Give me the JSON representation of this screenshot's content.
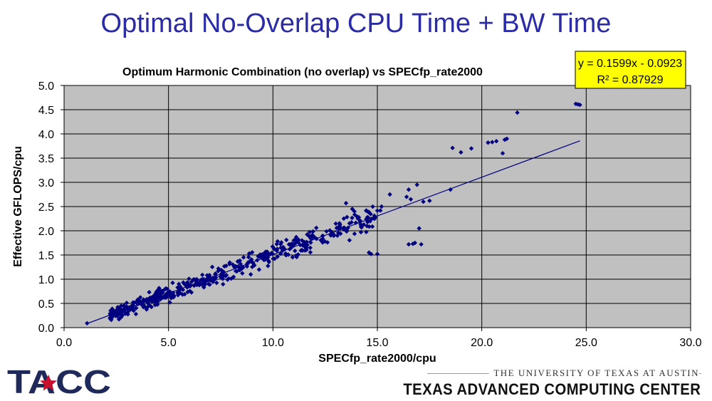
{
  "slide": {
    "title": "Optimal No-Overlap CPU Time + BW Time",
    "footer_university": "THE UNIVERSITY OF TEXAS AT AUSTIN",
    "footer_center": "TEXAS ADVANCED COMPUTING CENTER",
    "logo_text": "TACC"
  },
  "colors": {
    "title": "#2b2ba6",
    "plot_bg": "#c0c0c0",
    "points": "#000080",
    "trend": "#000080",
    "equation_bg": "#ffff00",
    "logo_red": "#c8102e",
    "logo_navy": "#1f2a5a"
  },
  "chart_data": {
    "type": "scatter",
    "title": "Optimum Harmonic Combination (no overlap) vs SPECfp_rate2000",
    "xlabel": "SPECfp_rate2000/cpu",
    "ylabel": "Effective GFLOPS/cpu",
    "xlim": [
      0,
      30
    ],
    "ylim": [
      0,
      5
    ],
    "xticks": [
      "0.0",
      "5.0",
      "10.0",
      "15.0",
      "20.0",
      "25.0",
      "30.0"
    ],
    "yticks": [
      "0.0",
      "0.5",
      "1.0",
      "1.5",
      "2.0",
      "2.5",
      "3.0",
      "3.5",
      "4.0",
      "4.5",
      "5.0"
    ],
    "grid": true,
    "legend": "none",
    "trendline": {
      "slope": 0.1599,
      "intercept": -0.0923,
      "x_range": [
        1.1,
        24.7
      ],
      "equation": "y = 0.1599x - 0.0923",
      "r_squared": "R² = 0.87929"
    },
    "highlight_points": [
      [
        24.5,
        4.62
      ],
      [
        24.7,
        4.6
      ],
      [
        24.6,
        4.61
      ],
      [
        21.7,
        4.44
      ],
      [
        21.1,
        3.88
      ],
      [
        21.2,
        3.9
      ],
      [
        20.5,
        3.83
      ],
      [
        20.7,
        3.85
      ],
      [
        20.3,
        3.82
      ],
      [
        21.0,
        3.6
      ],
      [
        19.5,
        3.7
      ],
      [
        18.6,
        3.71
      ],
      [
        19.0,
        3.62
      ],
      [
        18.5,
        2.85
      ],
      [
        17.5,
        2.62
      ],
      [
        17.2,
        2.6
      ],
      [
        16.9,
        2.95
      ],
      [
        16.5,
        2.85
      ],
      [
        16.4,
        2.7
      ],
      [
        16.6,
        2.65
      ],
      [
        15.6,
        2.75
      ],
      [
        17.0,
        2.05
      ],
      [
        16.8,
        1.75
      ],
      [
        17.1,
        1.72
      ],
      [
        16.5,
        1.72
      ],
      [
        16.7,
        1.73
      ],
      [
        15.0,
        1.52
      ],
      [
        14.7,
        1.52
      ],
      [
        14.6,
        1.55
      ],
      [
        15.2,
        2.5
      ],
      [
        13.5,
        2.57
      ],
      [
        13.8,
        2.45
      ],
      [
        13.9,
        2.4
      ],
      [
        1.1,
        0.09
      ]
    ],
    "cluster_model": {
      "note": "remaining ~500 points lie near the trend line",
      "count": 500,
      "x_range": [
        2.2,
        15.2
      ],
      "y_spread": 0.22
    }
  }
}
